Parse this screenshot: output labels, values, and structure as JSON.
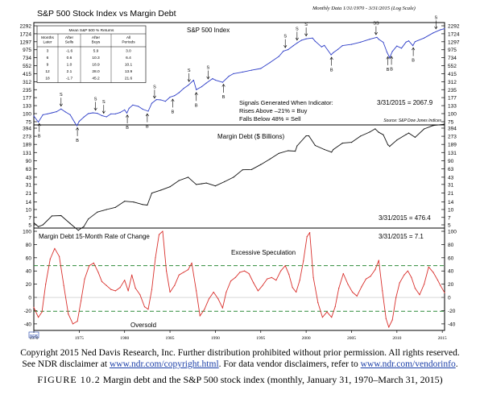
{
  "header": {
    "title": "S&P 500 Stock Index vs Margin Debt",
    "subtitle": "Monthly Data 1/31/1970 - 3/31/2015 (Log Scale)"
  },
  "panels": [
    {
      "name": "S&P 500 Index",
      "scale": "log",
      "ticks": [
        75,
        100,
        133,
        177,
        235,
        312,
        415,
        552,
        734,
        975,
        1297,
        1724,
        2292
      ],
      "current_value_label": "3/31/2015 = 2067.9",
      "source": "Source: S&P Dow Jones Indices",
      "signals_text": [
        "Signals Generated When Indicator:",
        "Rises Above –21% = Buy",
        "Falls Below 48% = Sell"
      ]
    },
    {
      "name": "Margin Debt ($ Billions)",
      "scale": "log",
      "ticks": [
        5,
        7,
        10,
        14,
        21,
        31,
        43,
        63,
        90,
        131,
        189,
        273,
        394
      ],
      "current_value_label": "3/31/2015 = 476.4"
    },
    {
      "name": "Margin Debt 15-Month Rate of Change",
      "scale": "linear",
      "ticks": [
        -40,
        -20,
        0,
        20,
        40,
        60,
        80,
        100
      ],
      "current_value_label": "3/31/2015 = 7.1",
      "thresholds": [
        48,
        -21
      ],
      "upper_zone_label": "Excessive Speculation",
      "lower_zone_label": "Oversold"
    }
  ],
  "stats_table": {
    "title": "Mean S&P 500 % Returns",
    "headers": [
      "Months Later",
      "After Sells",
      "After Buys",
      "All Periods"
    ],
    "rows": [
      [
        "3",
        "-1.6",
        "5.9",
        "3.0"
      ],
      [
        "6",
        "0.6",
        "10.3",
        "6.4"
      ],
      [
        "9",
        "1.0",
        "18.9",
        "10.1"
      ],
      [
        "12",
        "2.1",
        "28.0",
        "13.9"
      ],
      [
        "18",
        "-1.7",
        "45.2",
        "21.6"
      ]
    ]
  },
  "colors": {
    "sp500_line": "#2f3fc8",
    "margin_debt_line": "#111111",
    "roc_line": "#d9302c",
    "threshold_line": "#2e8b3a",
    "frame": "#000000",
    "link": "#1a3ea8"
  },
  "chart_data": [
    {
      "type": "line",
      "title": "S&P 500 Index",
      "y_scale": "log",
      "ylim": [
        75,
        2292
      ],
      "xlim": [
        1970,
        2015.25
      ],
      "grid": false,
      "series": [
        {
          "name": "S&P 500 Index",
          "x": [
            1970.0,
            1970.5,
            1971.0,
            1971.5,
            1972.0,
            1972.5,
            1973.0,
            1973.5,
            1974.0,
            1974.5,
            1974.75,
            1975.0,
            1975.5,
            1976.0,
            1976.5,
            1977.0,
            1977.5,
            1978.0,
            1978.5,
            1979.0,
            1979.5,
            1980.0,
            1980.25,
            1980.5,
            1980.9,
            1981.5,
            1982.0,
            1982.6,
            1983.0,
            1983.5,
            1984.0,
            1984.5,
            1985.0,
            1985.5,
            1986.0,
            1986.5,
            1987.0,
            1987.6,
            1987.9,
            1988.5,
            1989.0,
            1989.7,
            1990.0,
            1990.8,
            1991.5,
            1992.0,
            1993.0,
            1994.0,
            1995.0,
            1996.0,
            1997.0,
            1997.5,
            1998.0,
            1998.6,
            1999.0,
            1999.5,
            2000.0,
            2000.7,
            2001.0,
            2001.7,
            2002.0,
            2002.75,
            2003.0,
            2003.5,
            2004.0,
            2005.0,
            2006.0,
            2007.0,
            2007.8,
            2008.0,
            2008.5,
            2008.9,
            2009.2,
            2009.5,
            2010.0,
            2010.5,
            2011.0,
            2011.3,
            2011.75,
            2012.0,
            2013.0,
            2014.0,
            2014.8,
            2015.25
          ],
          "y": [
            92,
            74,
            96,
            99,
            103,
            107,
            118,
            106,
            96,
            73,
            65,
            76,
            88,
            100,
            103,
            101,
            93,
            89,
            99,
            99,
            104,
            114,
            102,
            121,
            136,
            130,
            117,
            109,
            145,
            165,
            163,
            155,
            180,
            190,
            211,
            245,
            274,
            329,
            235,
            262,
            297,
            349,
            330,
            306,
            380,
            416,
            440,
            470,
            500,
            615,
            770,
            930,
            980,
            1130,
            1240,
            1370,
            1440,
            1480,
            1320,
            1080,
            1140,
            815,
            880,
            990,
            1130,
            1180,
            1280,
            1420,
            1520,
            1420,
            1270,
            900,
            735,
            920,
            1115,
            1030,
            1280,
            1340,
            1130,
            1300,
            1480,
            1780,
            1990,
            2068
          ]
        }
      ],
      "annotations": [
        {
          "text": "S",
          "x": 1973.0,
          "role": "sell"
        },
        {
          "text": "S",
          "x": 1976.8,
          "role": "sell"
        },
        {
          "text": "S",
          "x": 1977.7,
          "role": "sell"
        },
        {
          "text": "S",
          "x": 1983.3,
          "role": "sell"
        },
        {
          "text": "S",
          "x": 1987.1,
          "role": "sell"
        },
        {
          "text": "S",
          "x": 1989.2,
          "role": "sell"
        },
        {
          "text": "S",
          "x": 1997.7,
          "role": "sell"
        },
        {
          "text": "S",
          "x": 1999.0,
          "role": "sell"
        },
        {
          "text": "S",
          "x": 2000.0,
          "role": "sell"
        },
        {
          "text": "SS",
          "x": 2007.7,
          "role": "sell"
        },
        {
          "text": "S",
          "x": 2014.3,
          "role": "sell"
        },
        {
          "text": "B",
          "x": 1970.6,
          "role": "buy"
        },
        {
          "text": "B",
          "x": 1974.8,
          "role": "buy"
        },
        {
          "text": "B",
          "x": 1980.3,
          "role": "buy"
        },
        {
          "text": "B",
          "x": 1982.5,
          "role": "buy"
        },
        {
          "text": "B",
          "x": 1985.3,
          "role": "buy"
        },
        {
          "text": "B",
          "x": 1987.9,
          "role": "buy"
        },
        {
          "text": "B",
          "x": 1990.9,
          "role": "buy"
        },
        {
          "text": "B",
          "x": 2002.8,
          "role": "buy"
        },
        {
          "text": "B",
          "x": 2009.0,
          "role": "buy"
        },
        {
          "text": "B",
          "x": 2009.4,
          "role": "buy"
        },
        {
          "text": "B",
          "x": 2011.8,
          "role": "buy"
        }
      ]
    },
    {
      "type": "line",
      "title": "Margin Debt ($ Billions)",
      "y_scale": "log",
      "ylim": [
        5,
        394
      ],
      "xlim": [
        1970,
        2015.25
      ],
      "grid": false,
      "series": [
        {
          "name": "Margin Debt ($ Billions)",
          "x": [
            1970.0,
            1970.5,
            1971.0,
            1972.0,
            1973.0,
            1974.0,
            1974.9,
            1975.5,
            1976.0,
            1977.0,
            1978.0,
            1979.0,
            1980.0,
            1981.0,
            1982.0,
            1982.5,
            1983.0,
            1984.0,
            1985.0,
            1986.0,
            1987.0,
            1987.9,
            1988.5,
            1989.0,
            1990.0,
            1991.0,
            1992.0,
            1993.0,
            1994.0,
            1995.0,
            1996.0,
            1997.0,
            1998.0,
            1998.8,
            1999.0,
            2000.0,
            2000.3,
            2001.0,
            2002.0,
            2002.8,
            2003.0,
            2004.0,
            2005.0,
            2006.0,
            2007.0,
            2007.6,
            2008.0,
            2008.5,
            2009.0,
            2009.2,
            2010.0,
            2011.0,
            2011.3,
            2012.0,
            2013.0,
            2014.0,
            2015.0,
            2015.25
          ],
          "y": [
            5.5,
            4.6,
            5.0,
            7.5,
            7.6,
            5.3,
            3.9,
            4.6,
            6.5,
            8.9,
            10.0,
            11.0,
            14.5,
            14.0,
            12.5,
            12.2,
            21.0,
            24.0,
            28.0,
            37.0,
            43.0,
            31.0,
            32.0,
            33.0,
            29.0,
            35.0,
            43.0,
            60.0,
            61.0,
            76.0,
            97.0,
            126.0,
            142.0,
            139.0,
            177.0,
            278.0,
            278.0,
            180.0,
            150.0,
            133.0,
            150.0,
            200.0,
            208.0,
            275.0,
            330.0,
            381.0,
            326.0,
            292.0,
            186.0,
            173.0,
            230.0,
            295.0,
            315.0,
            260.0,
            380.0,
            445.0,
            464.0,
            476.4
          ]
        }
      ]
    },
    {
      "type": "line",
      "title": "Margin Debt 15-Month Rate of Change",
      "y_scale": "linear",
      "ylim": [
        -45,
        100
      ],
      "xlim": [
        1970,
        2015.25
      ],
      "grid": false,
      "series": [
        {
          "name": "Margin Debt 15-Month Rate of Change",
          "x": [
            1970.0,
            1970.5,
            1970.9,
            1971.3,
            1971.8,
            1972.3,
            1972.8,
            1973.3,
            1973.8,
            1974.3,
            1974.8,
            1975.2,
            1975.6,
            1976.1,
            1976.6,
            1977.1,
            1977.5,
            1978.0,
            1978.5,
            1979.0,
            1979.5,
            1980.0,
            1980.4,
            1980.8,
            1981.2,
            1981.7,
            1982.2,
            1982.6,
            1983.0,
            1983.4,
            1983.8,
            1984.2,
            1984.6,
            1985.0,
            1985.5,
            1986.0,
            1986.5,
            1987.0,
            1987.4,
            1987.9,
            1988.3,
            1988.8,
            1989.3,
            1989.8,
            1990.3,
            1990.8,
            1991.2,
            1991.7,
            1992.2,
            1992.7,
            1993.2,
            1993.7,
            1994.2,
            1994.7,
            1995.2,
            1995.7,
            1996.2,
            1996.7,
            1997.2,
            1997.7,
            1998.1,
            1998.5,
            1998.9,
            1999.3,
            1999.7,
            2000.1,
            2000.4,
            2000.8,
            2001.3,
            2001.8,
            2002.3,
            2002.8,
            2003.2,
            2003.6,
            2004.1,
            2004.6,
            2005.1,
            2005.6,
            2006.1,
            2006.6,
            2007.1,
            2007.6,
            2008.0,
            2008.4,
            2008.8,
            2009.1,
            2009.5,
            2009.9,
            2010.3,
            2010.8,
            2011.2,
            2011.6,
            2012.0,
            2012.5,
            2013.0,
            2013.5,
            2014.0,
            2014.5,
            2014.8,
            2015.25
          ],
          "y": [
            -15,
            -30,
            -22,
            20,
            58,
            74,
            62,
            18,
            -25,
            -40,
            -36,
            -5,
            28,
            48,
            52,
            38,
            24,
            18,
            12,
            10,
            15,
            26,
            10,
            34,
            14,
            4,
            -14,
            -18,
            12,
            60,
            95,
            100,
            40,
            8,
            18,
            34,
            38,
            42,
            52,
            10,
            -28,
            -18,
            -2,
            8,
            -2,
            -16,
            8,
            25,
            30,
            38,
            40,
            36,
            22,
            10,
            18,
            28,
            30,
            26,
            40,
            48,
            35,
            15,
            8,
            26,
            55,
            92,
            98,
            30,
            -8,
            -30,
            -22,
            -30,
            -14,
            14,
            36,
            20,
            8,
            2,
            16,
            28,
            32,
            42,
            56,
            10,
            -32,
            -45,
            -34,
            0,
            22,
            34,
            40,
            30,
            14,
            4,
            20,
            46,
            38,
            26,
            18,
            7.1
          ]
        }
      ]
    }
  ],
  "x_axis": {
    "ticks": [
      "1970",
      "1975",
      "1980",
      "1985",
      "1990",
      "1995",
      "2000",
      "2005",
      "2010",
      "2015"
    ]
  },
  "logo": "NDR",
  "caption": {
    "line1": "Copyright 2015 Ned Davis Research, Inc. Further distribution prohibited without prior permission. All rights reserved.",
    "line2_part1": "See NDR disclaimer at ",
    "line2_link1": "www.ndr.com/copyright.html",
    "line2_part2": ". For data vendor disclaimers, refer to ",
    "line2_link2": "www.ndr.com/vendorinfo",
    "line2_part3": ".",
    "figure_label": "FIGURE 10.2",
    "figure_text": " Margin debt and the S&P 500 stock index (monthly, January 31, 1970–March 31, 2015)"
  }
}
